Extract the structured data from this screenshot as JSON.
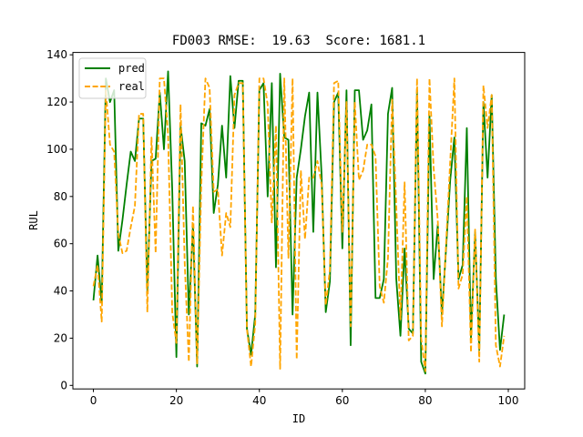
{
  "chart_data": {
    "type": "line",
    "title": "FD003 RMSE:  19.63  Score: 1681.1",
    "xlabel": "ID",
    "ylabel": "RUL",
    "xlim": [
      -4.95,
      103.95
    ],
    "ylim": [
      -1.5,
      141
    ],
    "xticks": [
      0,
      20,
      40,
      60,
      80,
      100
    ],
    "yticks": [
      0,
      20,
      40,
      60,
      80,
      100,
      120,
      140
    ],
    "grid": false,
    "legend_position": "top-left",
    "x": [
      0,
      1,
      2,
      3,
      4,
      5,
      6,
      7,
      8,
      9,
      10,
      11,
      12,
      13,
      14,
      15,
      16,
      17,
      18,
      19,
      20,
      21,
      22,
      23,
      24,
      25,
      26,
      27,
      28,
      29,
      30,
      31,
      32,
      33,
      34,
      35,
      36,
      37,
      38,
      39,
      40,
      41,
      42,
      43,
      44,
      45,
      46,
      47,
      48,
      49,
      50,
      51,
      52,
      53,
      54,
      55,
      56,
      57,
      58,
      59,
      60,
      61,
      62,
      63,
      64,
      65,
      66,
      67,
      68,
      69,
      70,
      71,
      72,
      73,
      74,
      75,
      76,
      77,
      78,
      79,
      80,
      81,
      82,
      83,
      84,
      85,
      86,
      87,
      88,
      89,
      90,
      91,
      92,
      93,
      94,
      95,
      96,
      97,
      98,
      99
    ],
    "series": [
      {
        "name": "pred",
        "color": "#008000",
        "dash": "solid",
        "values": [
          36,
          55,
          35,
          130,
          120,
          125,
          57,
          70,
          85,
          99,
          95,
          113,
          113,
          40,
          95,
          96,
          124,
          100,
          133,
          83,
          12,
          110,
          95,
          30,
          68,
          8,
          111,
          110,
          117,
          73,
          85,
          110,
          88,
          131,
          109,
          129,
          129,
          24,
          13,
          30,
          125,
          128,
          80,
          128,
          50,
          132,
          105,
          104,
          30,
          88,
          100,
          114,
          124,
          65,
          124,
          89,
          31,
          44,
          120,
          124,
          58,
          125,
          17,
          125,
          125,
          104,
          108,
          119,
          37,
          37,
          45,
          115,
          126,
          45,
          21,
          58,
          24,
          22,
          125,
          10,
          5,
          114,
          45,
          68,
          30,
          58,
          87,
          105,
          45,
          51,
          109,
          20,
          65,
          15,
          120,
          88,
          123,
          45,
          15,
          30
        ]
      },
      {
        "name": "real",
        "color": "#ffa500",
        "dash": "dashed",
        "values": [
          42,
          51,
          27,
          125,
          102,
          99,
          64,
          56,
          57,
          67,
          76,
          115,
          115,
          31,
          105,
          56,
          130,
          130,
          106,
          31,
          18,
          119,
          52,
          10,
          76,
          9,
          85,
          130,
          126,
          82,
          83,
          55,
          73,
          67,
          123,
          128,
          128,
          24,
          8,
          26,
          130,
          130,
          119,
          69,
          110,
          7,
          130,
          54,
          130,
          11,
          91,
          62,
          88,
          88,
          95,
          85,
          34,
          49,
          128,
          129,
          65,
          120,
          25,
          120,
          87,
          91,
          102,
          102,
          97,
          42,
          35,
          54,
          121,
          76,
          28,
          86,
          19,
          21,
          130,
          20,
          6,
          130,
          92,
          70,
          25,
          60,
          95,
          130,
          41,
          47,
          80,
          14,
          66,
          10,
          127,
          109,
          123,
          17,
          8,
          21
        ]
      }
    ]
  }
}
